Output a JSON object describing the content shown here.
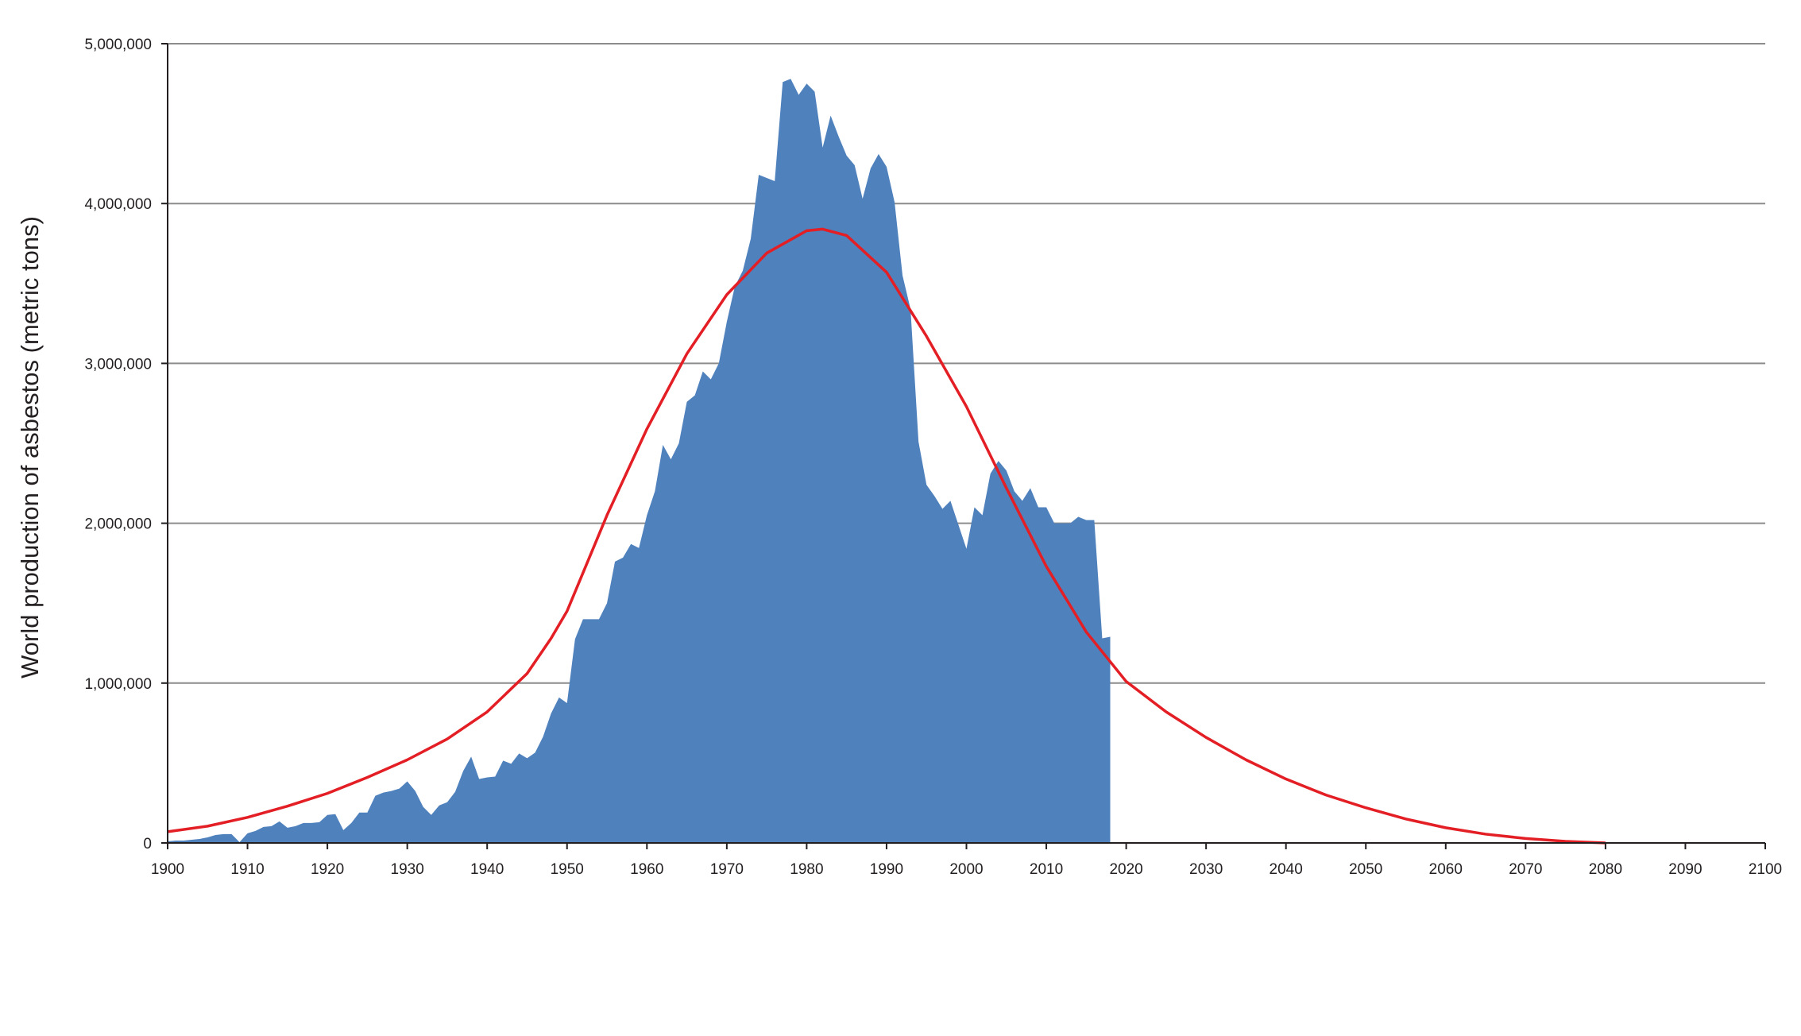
{
  "chart_data": {
    "type": "area",
    "title": "",
    "xlabel": "",
    "ylabel": "World production of asbestos (metric tons)",
    "xlim": [
      1900,
      2100
    ],
    "ylim": [
      0,
      5000000
    ],
    "grid": true,
    "legend": "none",
    "x_ticks": [
      1900,
      1910,
      1920,
      1930,
      1940,
      1950,
      1960,
      1970,
      1980,
      1990,
      2000,
      2010,
      2020,
      2030,
      2040,
      2050,
      2060,
      2070,
      2080,
      2090,
      2100
    ],
    "x_tick_labels": [
      "1900",
      "1910",
      "1920",
      "1930",
      "1940",
      "1950",
      "1960",
      "1970",
      "1980",
      "1990",
      "2000",
      "2010",
      "2020",
      "2030",
      "2040",
      "2050",
      "2060",
      "2070",
      "2080",
      "2090",
      "2100"
    ],
    "y_ticks": [
      0,
      1000000,
      2000000,
      3000000,
      4000000,
      5000000
    ],
    "y_tick_labels": [
      "0",
      "1,000,000",
      "2,000,000",
      "3,000,000",
      "4,000,000",
      "5,000,000"
    ],
    "colors": {
      "production": "#4f81bd",
      "fit": "#e31e24",
      "grid": "#8c8c8c",
      "axis": "#231f20"
    },
    "series": [
      {
        "type": "area",
        "color": "#4f81bd",
        "points": [
          [
            1900,
            10000
          ],
          [
            1901,
            15000
          ],
          [
            1902,
            15000
          ],
          [
            1903,
            20000
          ],
          [
            1904,
            25000
          ],
          [
            1905,
            35000
          ],
          [
            1906,
            50000
          ],
          [
            1907,
            55000
          ],
          [
            1908,
            55000
          ],
          [
            1909,
            5000
          ],
          [
            1910,
            60000
          ],
          [
            1911,
            75000
          ],
          [
            1912,
            100000
          ],
          [
            1913,
            105000
          ],
          [
            1914,
            135000
          ],
          [
            1915,
            95000
          ],
          [
            1916,
            105000
          ],
          [
            1917,
            125000
          ],
          [
            1918,
            125000
          ],
          [
            1919,
            130000
          ],
          [
            1920,
            175000
          ],
          [
            1921,
            180000
          ],
          [
            1922,
            80000
          ],
          [
            1923,
            125000
          ],
          [
            1924,
            190000
          ],
          [
            1925,
            190000
          ],
          [
            1926,
            295000
          ],
          [
            1927,
            315000
          ],
          [
            1928,
            325000
          ],
          [
            1929,
            340000
          ],
          [
            1930,
            385000
          ],
          [
            1931,
            325000
          ],
          [
            1932,
            225000
          ],
          [
            1933,
            175000
          ],
          [
            1934,
            235000
          ],
          [
            1935,
            255000
          ],
          [
            1936,
            320000
          ],
          [
            1937,
            450000
          ],
          [
            1938,
            540000
          ],
          [
            1939,
            400000
          ],
          [
            1940,
            410000
          ],
          [
            1941,
            415000
          ],
          [
            1942,
            515000
          ],
          [
            1943,
            495000
          ],
          [
            1944,
            560000
          ],
          [
            1945,
            530000
          ],
          [
            1946,
            565000
          ],
          [
            1947,
            665000
          ],
          [
            1948,
            810000
          ],
          [
            1949,
            910000
          ],
          [
            1950,
            875000
          ],
          [
            1951,
            1275000
          ],
          [
            1952,
            1400000
          ],
          [
            1953,
            1400000
          ],
          [
            1954,
            1400000
          ],
          [
            1955,
            1500000
          ],
          [
            1956,
            1760000
          ],
          [
            1957,
            1785000
          ],
          [
            1958,
            1870000
          ],
          [
            1959,
            1845000
          ],
          [
            1960,
            2050000
          ],
          [
            1961,
            2200000
          ],
          [
            1962,
            2490000
          ],
          [
            1963,
            2400000
          ],
          [
            1964,
            2500000
          ],
          [
            1965,
            2760000
          ],
          [
            1966,
            2800000
          ],
          [
            1967,
            2950000
          ],
          [
            1968,
            2900000
          ],
          [
            1969,
            3000000
          ],
          [
            1970,
            3260000
          ],
          [
            1971,
            3480000
          ],
          [
            1972,
            3580000
          ],
          [
            1973,
            3780000
          ],
          [
            1974,
            4180000
          ],
          [
            1975,
            4160000
          ],
          [
            1976,
            4140000
          ],
          [
            1977,
            4760000
          ],
          [
            1978,
            4780000
          ],
          [
            1979,
            4680000
          ],
          [
            1980,
            4750000
          ],
          [
            1981,
            4700000
          ],
          [
            1982,
            4350000
          ],
          [
            1983,
            4550000
          ],
          [
            1984,
            4420000
          ],
          [
            1985,
            4300000
          ],
          [
            1986,
            4240000
          ],
          [
            1987,
            4030000
          ],
          [
            1988,
            4220000
          ],
          [
            1989,
            4310000
          ],
          [
            1990,
            4230000
          ],
          [
            1991,
            4010000
          ],
          [
            1992,
            3550000
          ],
          [
            1993,
            3340000
          ],
          [
            1994,
            2510000
          ],
          [
            1995,
            2240000
          ],
          [
            1996,
            2170000
          ],
          [
            1997,
            2090000
          ],
          [
            1998,
            2140000
          ],
          [
            1999,
            1990000
          ],
          [
            2000,
            1840000
          ],
          [
            2001,
            2100000
          ],
          [
            2002,
            2050000
          ],
          [
            2003,
            2310000
          ],
          [
            2004,
            2390000
          ],
          [
            2005,
            2330000
          ],
          [
            2006,
            2200000
          ],
          [
            2007,
            2140000
          ],
          [
            2008,
            2220000
          ],
          [
            2009,
            2100000
          ],
          [
            2010,
            2100000
          ],
          [
            2011,
            2000000
          ],
          [
            2012,
            2000000
          ],
          [
            2013,
            2000000
          ],
          [
            2014,
            2040000
          ],
          [
            2015,
            2020000
          ],
          [
            2016,
            2020000
          ],
          [
            2017,
            1280000
          ],
          [
            2018,
            1290000
          ]
        ]
      },
      {
        "type": "line",
        "color": "#e31e24",
        "points": [
          [
            1900,
            70000
          ],
          [
            1905,
            105000
          ],
          [
            1910,
            160000
          ],
          [
            1915,
            230000
          ],
          [
            1920,
            310000
          ],
          [
            1925,
            410000
          ],
          [
            1930,
            520000
          ],
          [
            1935,
            650000
          ],
          [
            1940,
            820000
          ],
          [
            1945,
            1060000
          ],
          [
            1948,
            1280000
          ],
          [
            1950,
            1450000
          ],
          [
            1955,
            2050000
          ],
          [
            1960,
            2590000
          ],
          [
            1965,
            3060000
          ],
          [
            1970,
            3430000
          ],
          [
            1975,
            3690000
          ],
          [
            1980,
            3830000
          ],
          [
            1982,
            3840000
          ],
          [
            1985,
            3800000
          ],
          [
            1990,
            3570000
          ],
          [
            1995,
            3170000
          ],
          [
            2000,
            2730000
          ],
          [
            2005,
            2220000
          ],
          [
            2010,
            1730000
          ],
          [
            2015,
            1320000
          ],
          [
            2020,
            1010000
          ],
          [
            2025,
            820000
          ],
          [
            2030,
            660000
          ],
          [
            2035,
            520000
          ],
          [
            2040,
            400000
          ],
          [
            2045,
            300000
          ],
          [
            2050,
            220000
          ],
          [
            2055,
            150000
          ],
          [
            2060,
            95000
          ],
          [
            2065,
            55000
          ],
          [
            2070,
            28000
          ],
          [
            2075,
            10000
          ],
          [
            2080,
            0
          ]
        ]
      }
    ]
  }
}
